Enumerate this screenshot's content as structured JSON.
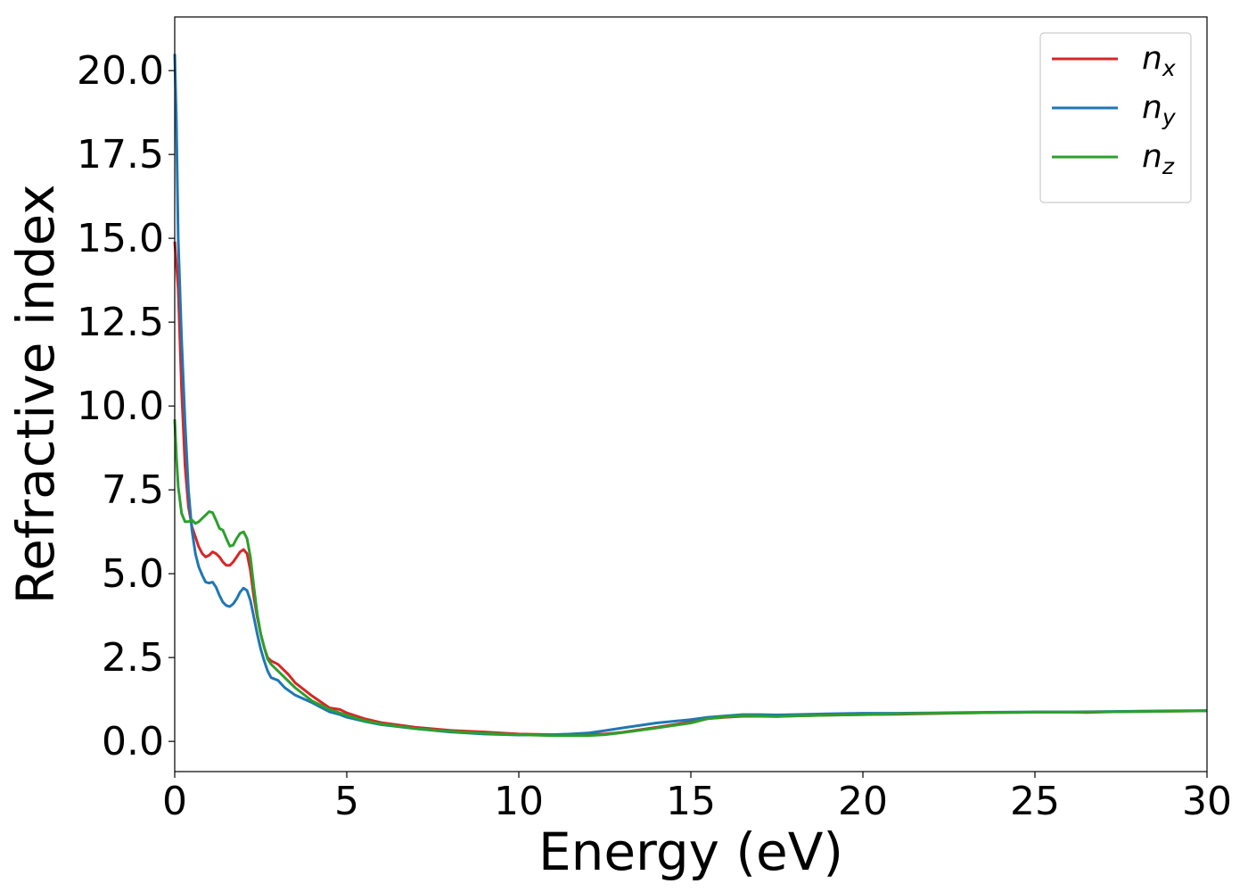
{
  "chart_data": {
    "type": "line",
    "xlabel": "Energy (eV)",
    "ylabel": "Refractive index",
    "xlim": [
      0,
      30
    ],
    "ylim": [
      -0.9,
      21.6
    ],
    "xticks": [
      0,
      5,
      10,
      15,
      20,
      25,
      30
    ],
    "xtick_labels": [
      "0",
      "5",
      "10",
      "15",
      "20",
      "25",
      "30"
    ],
    "yticks": [
      0,
      2.5,
      5,
      7.5,
      10,
      12.5,
      15,
      17.5,
      20
    ],
    "ytick_labels": [
      "0.0",
      "2.5",
      "5.0",
      "7.5",
      "10.0",
      "12.5",
      "15.0",
      "17.5",
      "20.0"
    ],
    "grid": false,
    "legend_position": "top-right",
    "series": [
      {
        "name": "n",
        "subscript": "x",
        "color": "#d62728",
        "points": [
          [
            0,
            14.9
          ],
          [
            0.1,
            13.5
          ],
          [
            0.2,
            10.5
          ],
          [
            0.3,
            8.2
          ],
          [
            0.4,
            7.0
          ],
          [
            0.5,
            6.4
          ],
          [
            0.6,
            6.1
          ],
          [
            0.7,
            5.8
          ],
          [
            0.8,
            5.6
          ],
          [
            0.9,
            5.5
          ],
          [
            1.0,
            5.55
          ],
          [
            1.1,
            5.65
          ],
          [
            1.2,
            5.6
          ],
          [
            1.3,
            5.5
          ],
          [
            1.4,
            5.35
          ],
          [
            1.5,
            5.25
          ],
          [
            1.6,
            5.25
          ],
          [
            1.7,
            5.35
          ],
          [
            1.8,
            5.5
          ],
          [
            1.9,
            5.65
          ],
          [
            2.0,
            5.72
          ],
          [
            2.1,
            5.6
          ],
          [
            2.2,
            5.1
          ],
          [
            2.3,
            4.3
          ],
          [
            2.4,
            3.7
          ],
          [
            2.5,
            3.2
          ],
          [
            2.6,
            2.8
          ],
          [
            2.7,
            2.5
          ],
          [
            2.8,
            2.4
          ],
          [
            3.0,
            2.3
          ],
          [
            3.3,
            2.0
          ],
          [
            3.5,
            1.75
          ],
          [
            4.0,
            1.35
          ],
          [
            4.5,
            1.0
          ],
          [
            4.8,
            0.95
          ],
          [
            5.0,
            0.85
          ],
          [
            5.5,
            0.68
          ],
          [
            6.0,
            0.56
          ],
          [
            7.0,
            0.42
          ],
          [
            8.0,
            0.33
          ],
          [
            9.0,
            0.28
          ],
          [
            10.0,
            0.22
          ],
          [
            11.0,
            0.2
          ],
          [
            12.0,
            0.2
          ],
          [
            12.5,
            0.22
          ],
          [
            13.0,
            0.27
          ],
          [
            14.0,
            0.42
          ],
          [
            15.0,
            0.58
          ],
          [
            15.5,
            0.68
          ],
          [
            16.0,
            0.72
          ],
          [
            16.5,
            0.75
          ],
          [
            17.0,
            0.75
          ],
          [
            17.5,
            0.74
          ],
          [
            18.0,
            0.76
          ],
          [
            19.0,
            0.78
          ],
          [
            20.0,
            0.8
          ],
          [
            21.0,
            0.81
          ],
          [
            22.0,
            0.83
          ],
          [
            23.0,
            0.85
          ],
          [
            24.0,
            0.86
          ],
          [
            25.0,
            0.87
          ],
          [
            26.0,
            0.87
          ],
          [
            26.5,
            0.86
          ],
          [
            27.0,
            0.88
          ],
          [
            28.0,
            0.89
          ],
          [
            29.0,
            0.9
          ],
          [
            30.0,
            0.91
          ]
        ]
      },
      {
        "name": "n",
        "subscript": "y",
        "color": "#1f77b4",
        "points": [
          [
            0,
            20.5
          ],
          [
            0.05,
            18.5
          ],
          [
            0.1,
            15.0
          ],
          [
            0.2,
            12.0
          ],
          [
            0.3,
            9.5
          ],
          [
            0.4,
            7.5
          ],
          [
            0.5,
            6.3
          ],
          [
            0.6,
            5.6
          ],
          [
            0.7,
            5.2
          ],
          [
            0.8,
            4.95
          ],
          [
            0.9,
            4.75
          ],
          [
            1.0,
            4.72
          ],
          [
            1.1,
            4.75
          ],
          [
            1.2,
            4.6
          ],
          [
            1.3,
            4.35
          ],
          [
            1.4,
            4.15
          ],
          [
            1.5,
            4.05
          ],
          [
            1.6,
            4.02
          ],
          [
            1.7,
            4.1
          ],
          [
            1.8,
            4.25
          ],
          [
            1.9,
            4.45
          ],
          [
            2.0,
            4.57
          ],
          [
            2.1,
            4.5
          ],
          [
            2.2,
            4.2
          ],
          [
            2.3,
            3.7
          ],
          [
            2.4,
            3.2
          ],
          [
            2.5,
            2.75
          ],
          [
            2.6,
            2.4
          ],
          [
            2.7,
            2.1
          ],
          [
            2.8,
            1.9
          ],
          [
            3.0,
            1.82
          ],
          [
            3.2,
            1.6
          ],
          [
            3.5,
            1.38
          ],
          [
            4.0,
            1.15
          ],
          [
            4.5,
            0.88
          ],
          [
            4.8,
            0.8
          ],
          [
            5.0,
            0.72
          ],
          [
            5.5,
            0.6
          ],
          [
            6.0,
            0.5
          ],
          [
            7.0,
            0.38
          ],
          [
            8.0,
            0.28
          ],
          [
            9.0,
            0.22
          ],
          [
            10.0,
            0.19
          ],
          [
            11.0,
            0.2
          ],
          [
            11.5,
            0.22
          ],
          [
            12.0,
            0.25
          ],
          [
            12.5,
            0.32
          ],
          [
            13.0,
            0.4
          ],
          [
            14.0,
            0.55
          ],
          [
            15.0,
            0.65
          ],
          [
            15.5,
            0.72
          ],
          [
            16.0,
            0.76
          ],
          [
            16.5,
            0.8
          ],
          [
            17.0,
            0.8
          ],
          [
            17.5,
            0.79
          ],
          [
            18.0,
            0.8
          ],
          [
            19.0,
            0.82
          ],
          [
            20.0,
            0.84
          ],
          [
            21.0,
            0.84
          ],
          [
            22.0,
            0.85
          ],
          [
            23.0,
            0.86
          ],
          [
            24.0,
            0.87
          ],
          [
            25.0,
            0.88
          ],
          [
            26.0,
            0.88
          ],
          [
            27.0,
            0.89
          ],
          [
            28.0,
            0.9
          ],
          [
            29.0,
            0.91
          ],
          [
            30.0,
            0.92
          ]
        ]
      },
      {
        "name": "n",
        "subscript": "z",
        "color": "#2ca02c",
        "points": [
          [
            0,
            9.6
          ],
          [
            0.05,
            8.5
          ],
          [
            0.1,
            7.6
          ],
          [
            0.2,
            6.8
          ],
          [
            0.3,
            6.55
          ],
          [
            0.4,
            6.55
          ],
          [
            0.5,
            6.6
          ],
          [
            0.6,
            6.5
          ],
          [
            0.7,
            6.55
          ],
          [
            0.8,
            6.65
          ],
          [
            0.9,
            6.75
          ],
          [
            1.0,
            6.85
          ],
          [
            1.1,
            6.82
          ],
          [
            1.2,
            6.6
          ],
          [
            1.3,
            6.35
          ],
          [
            1.4,
            6.3
          ],
          [
            1.5,
            6.05
          ],
          [
            1.6,
            5.82
          ],
          [
            1.7,
            5.85
          ],
          [
            1.8,
            6.05
          ],
          [
            1.9,
            6.2
          ],
          [
            2.0,
            6.25
          ],
          [
            2.1,
            6.05
          ],
          [
            2.2,
            5.5
          ],
          [
            2.3,
            4.6
          ],
          [
            2.4,
            3.8
          ],
          [
            2.5,
            3.2
          ],
          [
            2.6,
            2.8
          ],
          [
            2.7,
            2.45
          ],
          [
            2.8,
            2.3
          ],
          [
            3.0,
            2.1
          ],
          [
            3.3,
            1.8
          ],
          [
            3.5,
            1.6
          ],
          [
            4.0,
            1.2
          ],
          [
            4.5,
            0.95
          ],
          [
            5.0,
            0.78
          ],
          [
            5.5,
            0.62
          ],
          [
            6.0,
            0.52
          ],
          [
            7.0,
            0.38
          ],
          [
            8.0,
            0.3
          ],
          [
            9.0,
            0.24
          ],
          [
            10.0,
            0.2
          ],
          [
            11.0,
            0.17
          ],
          [
            12.0,
            0.17
          ],
          [
            12.5,
            0.2
          ],
          [
            13.0,
            0.26
          ],
          [
            14.0,
            0.4
          ],
          [
            15.0,
            0.55
          ],
          [
            15.5,
            0.68
          ],
          [
            16.0,
            0.73
          ],
          [
            16.5,
            0.77
          ],
          [
            17.0,
            0.76
          ],
          [
            17.5,
            0.74
          ],
          [
            18.0,
            0.76
          ],
          [
            19.0,
            0.78
          ],
          [
            20.0,
            0.8
          ],
          [
            21.0,
            0.82
          ],
          [
            22.0,
            0.84
          ],
          [
            23.0,
            0.85
          ],
          [
            24.0,
            0.86
          ],
          [
            25.0,
            0.87
          ],
          [
            26.0,
            0.87
          ],
          [
            27.0,
            0.88
          ],
          [
            28.0,
            0.89
          ],
          [
            29.0,
            0.9
          ],
          [
            30.0,
            0.91
          ]
        ]
      }
    ]
  }
}
